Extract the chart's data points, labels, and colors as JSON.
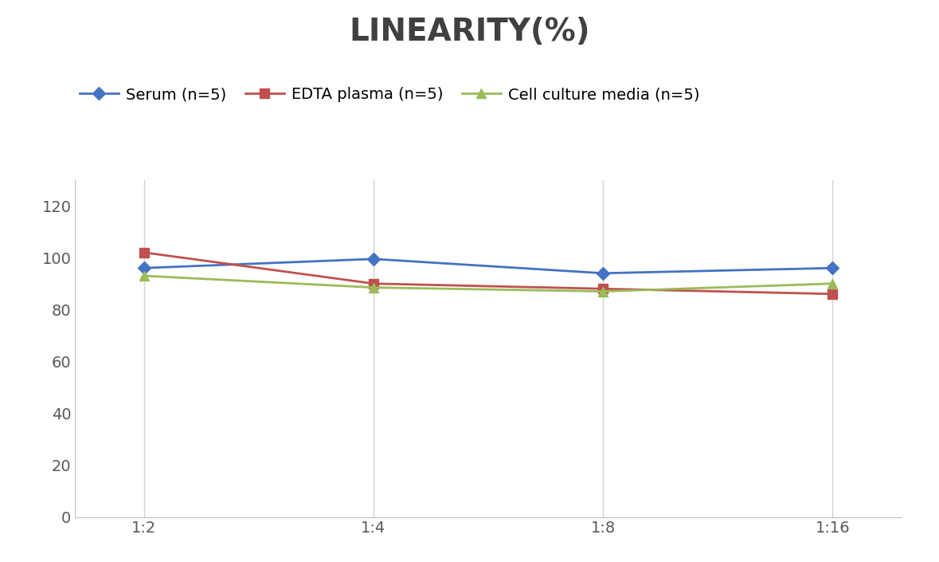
{
  "title": "LINEARITY(%)",
  "title_fontsize": 28,
  "title_fontweight": "bold",
  "title_color": "#404040",
  "x_labels": [
    "1:2",
    "1:4",
    "1:8",
    "1:16"
  ],
  "x_positions": [
    0,
    1,
    2,
    3
  ],
  "series": [
    {
      "label": "Serum (n=5)",
      "values": [
        96,
        99.5,
        94,
        96
      ],
      "color": "#4472C4",
      "marker": "D",
      "markersize": 8,
      "linewidth": 2
    },
    {
      "label": "EDTA plasma (n=5)",
      "values": [
        102,
        90,
        88,
        86
      ],
      "color": "#C0504D",
      "marker": "s",
      "markersize": 8,
      "linewidth": 2
    },
    {
      "label": "Cell culture media (n=5)",
      "values": [
        93,
        88.5,
        87,
        90
      ],
      "color": "#9BBB59",
      "marker": "^",
      "markersize": 8,
      "linewidth": 2
    }
  ],
  "ylim": [
    0,
    130
  ],
  "yticks": [
    0,
    20,
    40,
    60,
    80,
    100,
    120
  ],
  "grid_color": "#d3d3d3",
  "background_color": "#ffffff",
  "legend_fontsize": 14,
  "tick_fontsize": 14,
  "axis_label_color": "#595959"
}
